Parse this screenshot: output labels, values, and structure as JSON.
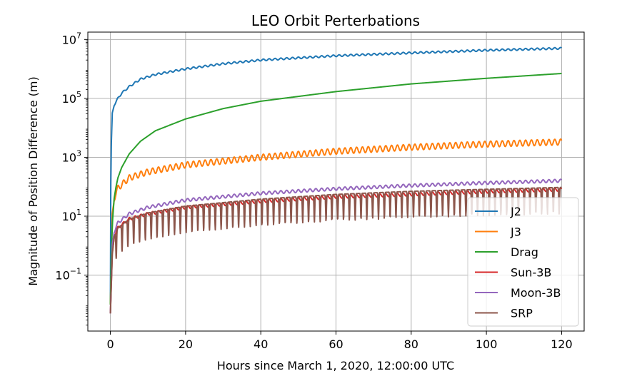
{
  "chart_data": {
    "type": "line",
    "title": "LEO Orbit Perterbations",
    "xlabel": "Hours since March 1, 2020, 12:00:00 UTC",
    "ylabel": "Magnitude of Position Difference (m)",
    "xlim": [
      -6,
      126
    ],
    "ylim_log10": [
      -2.9,
      7.25
    ],
    "yscale": "log",
    "grid": true,
    "legend_position": "lower-right",
    "x_ticks": [
      {
        "value": 0,
        "label": "0"
      },
      {
        "value": 20,
        "label": "20"
      },
      {
        "value": 40,
        "label": "40"
      },
      {
        "value": 60,
        "label": "60"
      },
      {
        "value": 80,
        "label": "80"
      },
      {
        "value": 100,
        "label": "100"
      },
      {
        "value": 120,
        "label": "120"
      }
    ],
    "y_ticks": [
      {
        "exp": 7,
        "base": "10",
        "sup": "7"
      },
      {
        "exp": 5,
        "base": "10",
        "sup": "5"
      },
      {
        "exp": 3,
        "base": "10",
        "sup": "3"
      },
      {
        "exp": 1,
        "base": "10",
        "sup": "1"
      },
      {
        "exp": -1,
        "base": "10",
        "sup": "−1"
      }
    ],
    "series": [
      {
        "name": "J2",
        "color": "#1f77b4",
        "x": [
          0,
          0.1,
          0.25,
          0.5,
          1,
          2,
          3,
          5,
          8,
          12,
          20,
          30,
          40,
          60,
          80,
          100,
          120
        ],
        "y": [
          0.01,
          100,
          3000,
          30000,
          60000,
          100000,
          150000,
          250000,
          450000,
          650000,
          1000000,
          1500000,
          2000000,
          2800000,
          3500000,
          4300000,
          5000000
        ],
        "osc_amp_log10": 0.03
      },
      {
        "name": "J3",
        "color": "#ff7f0e",
        "x": [
          0,
          0.5,
          1,
          2,
          5,
          10,
          20,
          40,
          60,
          80,
          100,
          120
        ],
        "y": [
          0.01,
          10,
          40,
          90,
          200,
          320,
          550,
          1000,
          1600,
          2200,
          2800,
          3300
        ],
        "osc_amp_log10": 0.1
      },
      {
        "name": "Drag",
        "color": "#2ca02c",
        "x": [
          0,
          0.3,
          0.6,
          1,
          1.5,
          2,
          3,
          5,
          8,
          12,
          20,
          30,
          40,
          60,
          80,
          100,
          120
        ],
        "y": [
          0.01,
          1,
          8,
          40,
          100,
          200,
          450,
          1300,
          3500,
          8000,
          20000,
          45000,
          80000,
          170000,
          310000,
          480000,
          700000
        ],
        "osc_amp_log10": 0
      },
      {
        "name": "Sun-3B",
        "color": "#d62728",
        "x": [
          0,
          0.5,
          1,
          2,
          5,
          10,
          20,
          40,
          60,
          80,
          100,
          120
        ],
        "y": [
          0.005,
          0.5,
          2,
          4,
          8,
          12,
          20,
          32,
          45,
          55,
          68,
          80
        ],
        "osc_amp_log10": 0.05
      },
      {
        "name": "Moon-3B",
        "color": "#9467bd",
        "x": [
          0,
          0.5,
          1,
          2,
          5,
          10,
          20,
          40,
          60,
          80,
          100,
          120
        ],
        "y": [
          0.005,
          1,
          3,
          6,
          12,
          20,
          35,
          60,
          85,
          110,
          135,
          160
        ],
        "osc_amp_log10": 0.05
      },
      {
        "name": "SRP",
        "color": "#8c564b",
        "x": [
          0,
          0.5,
          1,
          2,
          5,
          10,
          20,
          40,
          60,
          80,
          100,
          120
        ],
        "y": [
          0.005,
          0.5,
          2,
          4,
          8,
          13,
          22,
          38,
          55,
          70,
          82,
          95
        ],
        "dip_depth_log10": 0.9
      }
    ]
  }
}
